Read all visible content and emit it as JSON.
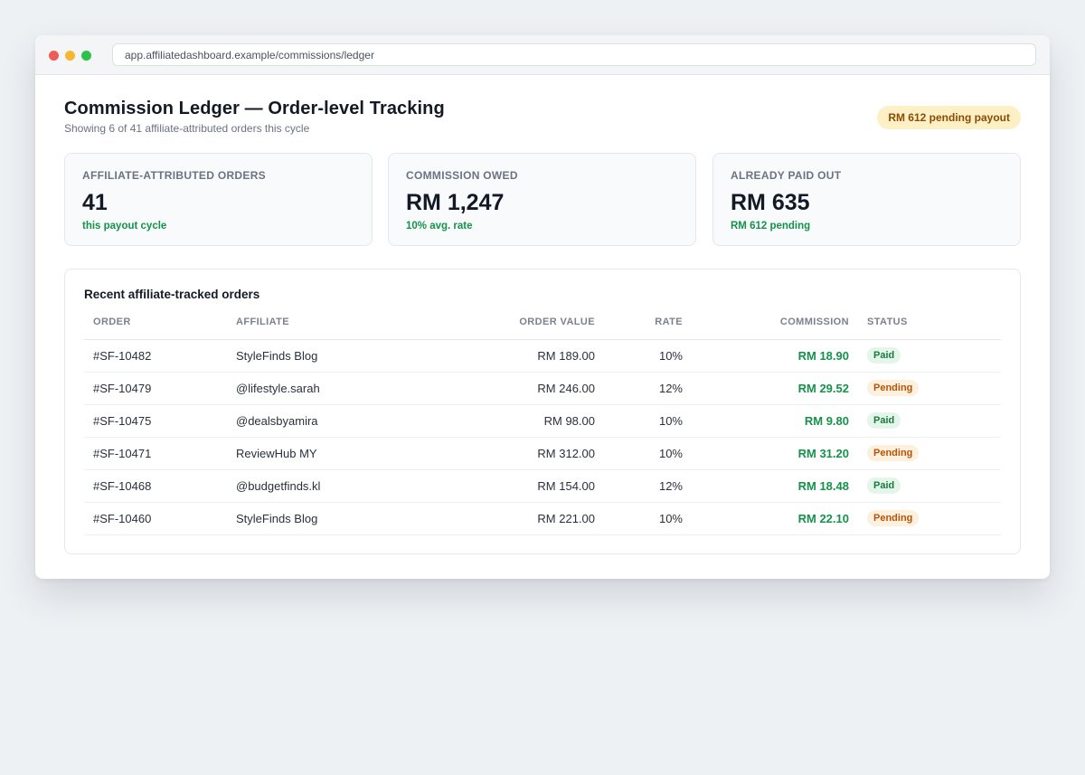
{
  "browser": {
    "url": "app.affiliatedashboard.example/commissions/ledger"
  },
  "header": {
    "title": "Commission Ledger — Order-level Tracking",
    "subtitle": "Showing 6 of 41 affiliate-attributed orders this cycle",
    "badge": "RM 612 pending payout"
  },
  "stats": [
    {
      "label": "AFFILIATE-ATTRIBUTED ORDERS",
      "value": "41",
      "note": "this payout cycle"
    },
    {
      "label": "COMMISSION OWED",
      "value": "RM 1,247",
      "note": "10% avg. rate"
    },
    {
      "label": "ALREADY PAID OUT",
      "value": "RM 635",
      "note": "RM 612 pending"
    }
  ],
  "table": {
    "title": "Recent affiliate-tracked orders",
    "columns": [
      "ORDER",
      "AFFILIATE",
      "ORDER VALUE",
      "RATE",
      "COMMISSION",
      "STATUS"
    ],
    "rows": [
      {
        "order": "#SF-10482",
        "affiliate": "StyleFinds Blog",
        "value": "RM 189.00",
        "rate": "10%",
        "commission": "RM 18.90",
        "status": "Paid"
      },
      {
        "order": "#SF-10479",
        "affiliate": "@lifestyle.sarah",
        "value": "RM 246.00",
        "rate": "12%",
        "commission": "RM 29.52",
        "status": "Pending"
      },
      {
        "order": "#SF-10475",
        "affiliate": "@dealsbyamira",
        "value": "RM 98.00",
        "rate": "10%",
        "commission": "RM 9.80",
        "status": "Paid"
      },
      {
        "order": "#SF-10471",
        "affiliate": "ReviewHub MY",
        "value": "RM 312.00",
        "rate": "10%",
        "commission": "RM 31.20",
        "status": "Pending"
      },
      {
        "order": "#SF-10468",
        "affiliate": "@budgetfinds.kl",
        "value": "RM 154.00",
        "rate": "12%",
        "commission": "RM 18.48",
        "status": "Paid"
      },
      {
        "order": "#SF-10460",
        "affiliate": "StyleFinds Blog",
        "value": "RM 221.00",
        "rate": "10%",
        "commission": "RM 22.10",
        "status": "Pending"
      }
    ]
  },
  "colors": {
    "accent_green": "#15924a",
    "paid_bg": "#e4f5ea",
    "pending_bg": "#fdf0dd",
    "badge_bg": "#fdf0c4"
  }
}
